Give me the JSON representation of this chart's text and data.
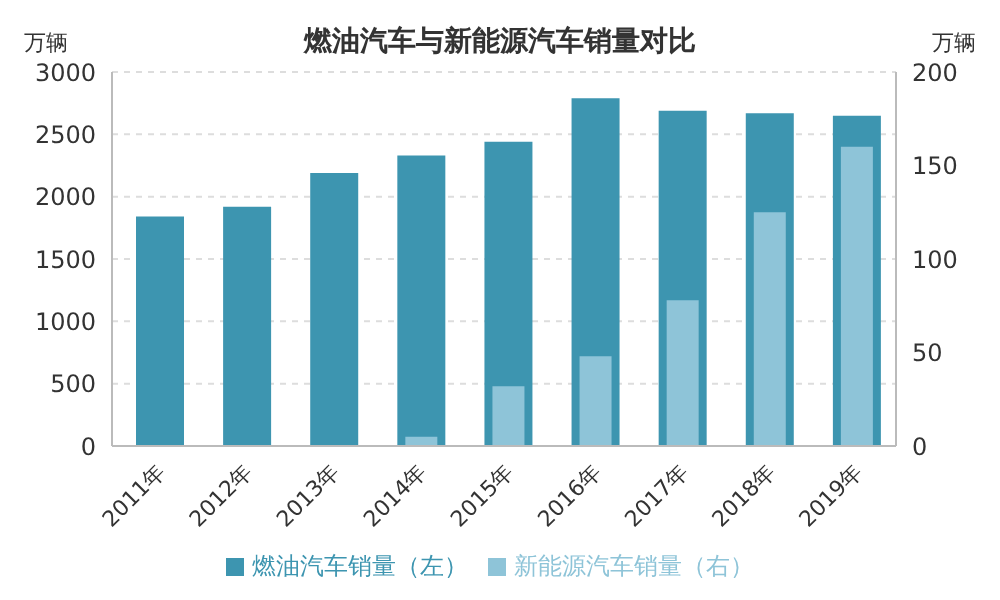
{
  "chart_data": {
    "type": "bar",
    "title": "燃油汽车与新能源汽车销量对比",
    "ylabel": "万辆",
    "y2label": "万辆",
    "categories": [
      "2011年",
      "2012年",
      "2013年",
      "2014年",
      "2015年",
      "2016年",
      "2017年",
      "2018年",
      "2019年"
    ],
    "series": [
      {
        "name": "燃油汽车销量（左）",
        "color": "#3d95b0",
        "values": [
          1840,
          1920,
          2190,
          2330,
          2440,
          2790,
          2690,
          2670,
          2650
        ]
      },
      {
        "name": "新能源汽车销量（右）",
        "color": "#8ec4d8",
        "axis": "y2",
        "values": [
          null,
          null,
          null,
          5,
          32,
          48,
          78,
          125,
          160
        ]
      }
    ],
    "ylim": [
      0,
      3000
    ],
    "yticks": [
      0,
      500,
      1000,
      1500,
      2000,
      2500,
      3000
    ],
    "y2lim": [
      0,
      200
    ],
    "y2ticks": [
      0,
      50,
      100,
      150,
      200
    ],
    "grid": "y",
    "legend": "bottom"
  }
}
